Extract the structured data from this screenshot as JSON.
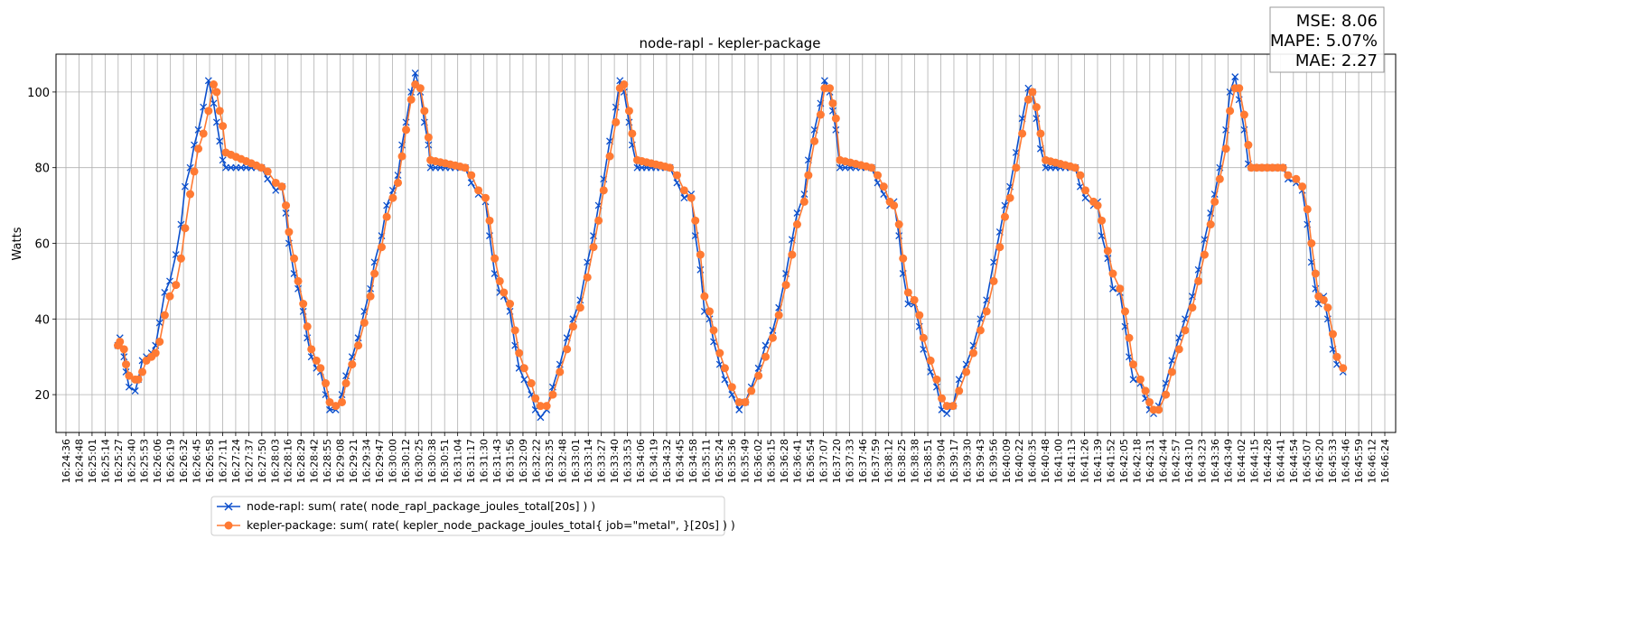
{
  "chart_data": {
    "type": "line",
    "title": "node-rapl - kepler-package",
    "xlabel": "",
    "ylabel": "Watts",
    "ylim": [
      10,
      110
    ],
    "yticks": [
      20,
      40,
      60,
      80,
      100
    ],
    "grid": true,
    "legend_position": "bottom-left, below axes",
    "x_unit": "seconds since 16:24:36",
    "x_tick_step_s": 12.95,
    "x_tick_labels": [
      "16:24:36",
      "16:24:48",
      "16:25:01",
      "16:25:14",
      "16:25:27",
      "16:25:40",
      "16:25:53",
      "16:26:06",
      "16:26:19",
      "16:26:32",
      "16:26:45",
      "16:26:58",
      "16:27:11",
      "16:27:24",
      "16:27:37",
      "16:27:50",
      "16:28:03",
      "16:28:16",
      "16:28:29",
      "16:28:42",
      "16:28:55",
      "16:29:08",
      "16:29:21",
      "16:29:34",
      "16:29:47",
      "16:30:00",
      "16:30:12",
      "16:30:25",
      "16:30:38",
      "16:30:51",
      "16:31:04",
      "16:31:17",
      "16:31:30",
      "16:31:43",
      "16:31:56",
      "16:32:09",
      "16:32:22",
      "16:32:35",
      "16:32:48",
      "16:33:01",
      "16:33:14",
      "16:33:27",
      "16:33:40",
      "16:33:53",
      "16:34:06",
      "16:34:19",
      "16:34:32",
      "16:34:45",
      "16:34:58",
      "16:35:11",
      "16:35:24",
      "16:35:36",
      "16:35:49",
      "16:36:02",
      "16:36:15",
      "16:36:28",
      "16:36:41",
      "16:36:54",
      "16:37:07",
      "16:37:20",
      "16:37:33",
      "16:37:46",
      "16:37:59",
      "16:38:12",
      "16:38:25",
      "16:38:38",
      "16:38:51",
      "16:39:04",
      "16:39:17",
      "16:39:30",
      "16:39:43",
      "16:39:56",
      "16:40:09",
      "16:40:22",
      "16:40:35",
      "16:40:48",
      "16:41:00",
      "16:41:13",
      "16:41:26",
      "16:41:39",
      "16:41:52",
      "16:42:05",
      "16:42:18",
      "16:42:31",
      "16:42:44",
      "16:42:57",
      "16:43:10",
      "16:43:23",
      "16:43:36",
      "16:43:49",
      "16:44:02",
      "16:44:15",
      "16:44:28",
      "16:44:41",
      "16:44:54",
      "16:45:07",
      "16:45:20",
      "16:45:33",
      "16:45:46",
      "16:45:59",
      "16:46:12",
      "16:46:24"
    ],
    "t": [
      51,
      53,
      57,
      59,
      62,
      68,
      71,
      75,
      79,
      84,
      88,
      92,
      97,
      102,
      108,
      113,
      117,
      122,
      126,
      130,
      135,
      140,
      145,
      148,
      151,
      154,
      157,
      192,
      198,
      206,
      212,
      216,
      219,
      224,
      228,
      233,
      237,
      241,
      246,
      250,
      255,
      259,
      265,
      271,
      275,
      281,
      287,
      293,
      299,
      303,
      310,
      315,
      321,
      326,
      330,
      334,
      339,
      343,
      348,
      352,
      356,
      358,
      392,
      398,
      405,
      412,
      416,
      421,
      426,
      430,
      436,
      441,
      445,
      450,
      457,
      461,
      466,
      472,
      478,
      485,
      492,
      498,
      505,
      512,
      518,
      523,
      528,
      534,
      540,
      544,
      548,
      553,
      556,
      561,
      593,
      600,
      607,
      614,
      618,
      623,
      627,
      632,
      636,
      642,
      647,
      654,
      661,
      667,
      673,
      680,
      687,
      694,
      700,
      707,
      713,
      718,
      725,
      729,
      735,
      741,
      745,
      750,
      753,
      756,
      760,
      791,
      797,
      803,
      809,
      813,
      818,
      822,
      827,
      833,
      838,
      842,
      849,
      855,
      860,
      865,
      871,
      877,
      884,
      891,
      898,
      904,
      911,
      917,
      922,
      927,
      933,
      939,
      945,
      949,
      953,
      957,
      962,
      991,
      996,
      1001,
      1009,
      1013,
      1017,
      1023,
      1028,
      1035,
      1040,
      1044,
      1048,
      1055,
      1060,
      1064,
      1068,
      1073,
      1080,
      1086,
      1093,
      1099,
      1106,
      1112,
      1118,
      1124,
      1128,
      1133,
      1139,
      1143,
      1148,
      1152,
      1157,
      1161,
      1164,
      1195,
      1200,
      1208,
      1214,
      1219,
      1223,
      1227,
      1230,
      1235,
      1239,
      1244,
      1248,
      1254
    ],
    "series": [
      {
        "name": "node-rapl: sum( rate( node_rapl_package_joules_total[20s] ) )",
        "color": "#0b4fcc",
        "marker": "x",
        "values": [
          33,
          35,
          30,
          26,
          22,
          21,
          24,
          29,
          30,
          31,
          33,
          39,
          47,
          50,
          57,
          65,
          75,
          80,
          86,
          90,
          96,
          103,
          97,
          92,
          87,
          82,
          80,
          80,
          77,
          74,
          75,
          68,
          60,
          52,
          48,
          42,
          35,
          30,
          27,
          26,
          20,
          16,
          16,
          20,
          25,
          30,
          35,
          42,
          48,
          55,
          62,
          70,
          74,
          78,
          86,
          92,
          100,
          105,
          100,
          92,
          86,
          80,
          80,
          76,
          73,
          71,
          62,
          52,
          47,
          46,
          42,
          33,
          27,
          24,
          20,
          16,
          14,
          16,
          22,
          28,
          35,
          40,
          45,
          55,
          62,
          70,
          77,
          87,
          96,
          103,
          100,
          92,
          86,
          80,
          80,
          76,
          72,
          73,
          62,
          53,
          42,
          40,
          34,
          28,
          24,
          20,
          16,
          18,
          22,
          27,
          33,
          37,
          43,
          52,
          61,
          68,
          73,
          82,
          90,
          97,
          103,
          100,
          95,
          90,
          80,
          80,
          76,
          73,
          70,
          71,
          62,
          52,
          44,
          44,
          38,
          32,
          26,
          22,
          16,
          15,
          17,
          24,
          28,
          33,
          40,
          45,
          55,
          63,
          70,
          75,
          84,
          93,
          101,
          100,
          93,
          85,
          80,
          80,
          75,
          72,
          70,
          71,
          62,
          56,
          48,
          47,
          38,
          30,
          24,
          23,
          19,
          16,
          15,
          17,
          23,
          29,
          35,
          40,
          46,
          53,
          61,
          68,
          73,
          80,
          90,
          100,
          104,
          98,
          90,
          81,
          80,
          80,
          77,
          76,
          74,
          65,
          55,
          48,
          44,
          46,
          40,
          32,
          28,
          26
        ]
      },
      {
        "name": "kepler-package: sum( rate( kepler_node_package_joules_total{ job=\"metal\", }[20s] ) )",
        "color": "#ff7a33",
        "marker": "o",
        "values": [
          33,
          34,
          32,
          28,
          25,
          24,
          24,
          26,
          29,
          30,
          31,
          34,
          41,
          46,
          49,
          56,
          64,
          73,
          79,
          85,
          89,
          95,
          102,
          100,
          95,
          91,
          84,
          80,
          79,
          76,
          75,
          70,
          63,
          56,
          50,
          44,
          38,
          32,
          29,
          27,
          23,
          18,
          17,
          18,
          23,
          28,
          33,
          39,
          46,
          52,
          59,
          67,
          72,
          76,
          83,
          90,
          98,
          102,
          101,
          95,
          88,
          82,
          80,
          78,
          74,
          72,
          66,
          56,
          50,
          47,
          44,
          37,
          31,
          27,
          23,
          19,
          17,
          17,
          20,
          26,
          32,
          38,
          43,
          51,
          59,
          66,
          74,
          83,
          92,
          101,
          102,
          95,
          89,
          82,
          80,
          78,
          74,
          72,
          66,
          57,
          46,
          42,
          37,
          31,
          27,
          22,
          18,
          18,
          21,
          25,
          30,
          35,
          41,
          49,
          57,
          65,
          71,
          78,
          87,
          94,
          101,
          101,
          97,
          93,
          82,
          80,
          78,
          75,
          71,
          70,
          65,
          56,
          47,
          45,
          41,
          35,
          29,
          24,
          19,
          17,
          17,
          21,
          26,
          31,
          37,
          42,
          50,
          59,
          67,
          72,
          80,
          89,
          98,
          100,
          96,
          89,
          82,
          80,
          78,
          74,
          71,
          70,
          66,
          58,
          52,
          48,
          42,
          35,
          28,
          24,
          21,
          18,
          16,
          16,
          20,
          26,
          32,
          37,
          43,
          50,
          57,
          65,
          71,
          77,
          85,
          95,
          101,
          101,
          94,
          86,
          80,
          80,
          78,
          77,
          75,
          69,
          60,
          52,
          46,
          45,
          43,
          36,
          30,
          27
        ]
      }
    ],
    "stats": {
      "mse": "MSE: 8.06",
      "mape": "MAPE: 5.07%",
      "mae": "MAE: 2.27"
    }
  }
}
